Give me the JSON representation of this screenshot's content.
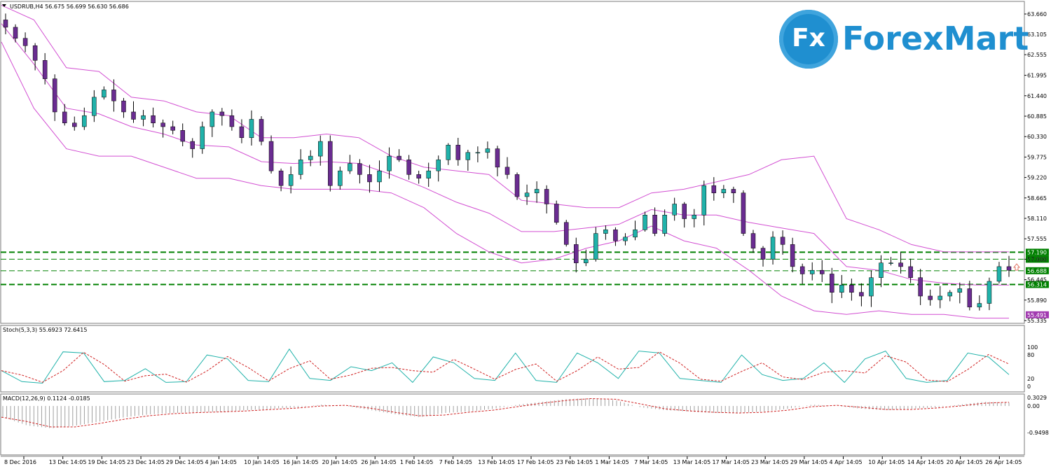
{
  "main_panel": {
    "header": "USDRUB,H4  56.675 56.699 56.630 56.686",
    "price_ticks": [
      "63.660",
      "63.105",
      "62.555",
      "61.995",
      "61.440",
      "60.885",
      "60.330",
      "59.775",
      "59.220",
      "58.665",
      "58.110",
      "57.555",
      "57.000",
      "56.445",
      "55.890",
      "55.335"
    ],
    "levels": [
      {
        "price": 57.19,
        "label": "57.190",
        "bg": "#008000",
        "fg": "#ffffff"
      },
      {
        "price": 57.0,
        "label": "57.000",
        "bg": "#008000",
        "fg": "#ffffff"
      },
      {
        "price": 56.688,
        "label": "56.688",
        "bg": "#008000",
        "fg": "#ffffff"
      },
      {
        "price": 56.314,
        "label": "56.314",
        "bg": "#008000",
        "fg": "#ffffff"
      },
      {
        "price": 55.491,
        "label": "55.491",
        "bg": "#a23ab0",
        "fg": "#ffffff"
      }
    ]
  },
  "stoch_panel": {
    "header": "Stoch(5,3,3) 55.6923 72.6415",
    "ticks": [
      "100",
      "80",
      "20",
      "0"
    ]
  },
  "macd_panel": {
    "header": "MACD(12,26,9) 0.1124 -0.0185",
    "ticks": [
      "0.3029",
      "0.00",
      "-0.9498"
    ]
  },
  "x_labels": [
    "8 Dec 2016",
    "13 Dec 14:05",
    "19 Dec 14:05",
    "23 Dec 14:05",
    "29 Dec 14:05",
    "4 Jan 14:05",
    "10 Jan 14:05",
    "16 Jan 14:05",
    "20 Jan 14:05",
    "26 Jan 14:05",
    "1 Feb 14:05",
    "7 Feb 14:05",
    "13 Feb 14:05",
    "17 Feb 14:05",
    "23 Feb 14:05",
    "1 Mar 14:05",
    "7 Mar 14:05",
    "13 Mar 14:05",
    "17 Mar 14:05",
    "23 Mar 14:05",
    "29 Mar 14:05",
    "4 Apr 14:05",
    "10 Apr 14:05",
    "14 Apr 14:05",
    "20 Apr 14:05",
    "26 Apr 14:05"
  ],
  "logo": {
    "badge_text": "Fx",
    "brand_text": "ForexMart"
  },
  "colors": {
    "bull": "#20b2aa",
    "bear": "#6a2c91",
    "bollinger": "#d24fd2",
    "level_line": "#008000",
    "stoch_main": "#20b2aa",
    "stoch_signal": "#d02020",
    "macd_hist": "#a0a0a0",
    "macd_signal": "#d02020"
  },
  "chart_data": {
    "type": "candlestick",
    "symbol": "USDRUB",
    "timeframe": "H4",
    "ylim": [
      55.335,
      63.66
    ],
    "close_series": [
      63.3,
      63.0,
      62.8,
      62.4,
      61.9,
      61.0,
      60.7,
      60.6,
      60.9,
      61.4,
      61.6,
      61.3,
      61.0,
      60.8,
      60.9,
      60.7,
      60.6,
      60.5,
      60.2,
      60.0,
      60.6,
      61.0,
      60.9,
      60.6,
      60.3,
      60.8,
      60.2,
      59.4,
      59.0,
      59.3,
      59.7,
      59.8,
      60.2,
      59.0,
      59.4,
      59.6,
      59.3,
      59.1,
      59.4,
      59.8,
      59.7,
      59.3,
      59.2,
      59.4,
      59.7,
      60.1,
      59.7,
      59.9,
      59.9,
      60.0,
      59.5,
      59.3,
      58.7,
      58.8,
      58.9,
      58.5,
      58.0,
      57.4,
      56.9,
      57.0,
      57.7,
      57.8,
      57.5,
      57.6,
      57.8,
      58.2,
      57.7,
      58.2,
      58.5,
      58.1,
      58.2,
      59.0,
      58.8,
      58.9,
      58.8,
      57.7,
      57.3,
      57.0,
      57.6,
      57.4,
      56.8,
      56.6,
      56.7,
      56.6,
      56.1,
      56.3,
      56.1,
      56.0,
      56.5,
      56.9,
      56.9,
      56.8,
      56.5,
      56.0,
      55.9,
      56.0,
      56.1,
      56.2,
      55.7,
      55.8,
      56.4,
      56.8,
      56.7
    ],
    "bollinger_upper": [
      63.9,
      63.5,
      62.2,
      62.1,
      61.4,
      61.3,
      61.0,
      60.9,
      60.3,
      60.3,
      60.4,
      60.3,
      59.8,
      59.5,
      59.4,
      59.3,
      58.6,
      58.5,
      58.4,
      58.4,
      58.8,
      58.9,
      59.1,
      59.3,
      59.7,
      59.8,
      58.1,
      57.8,
      57.4,
      57.2,
      57.2,
      57.2
    ],
    "bollinger_lower": [
      62.9,
      61.1,
      60.0,
      59.8,
      59.8,
      59.5,
      59.2,
      59.2,
      59.0,
      58.9,
      58.9,
      58.9,
      58.8,
      58.4,
      57.7,
      57.2,
      56.9,
      57.0,
      57.3,
      57.5,
      57.9,
      57.5,
      57.3,
      56.7,
      56.0,
      55.6,
      55.5,
      55.6,
      55.5,
      55.5,
      55.4,
      55.4
    ],
    "stoch_main": [
      40,
      12,
      8,
      88,
      85,
      12,
      15,
      45,
      10,
      12,
      80,
      70,
      15,
      12,
      95,
      20,
      15,
      50,
      40,
      60,
      10,
      75,
      60,
      20,
      15,
      85,
      15,
      10,
      85,
      60,
      20,
      90,
      85,
      20,
      15,
      10,
      80,
      30,
      15,
      20,
      60,
      10,
      70,
      90,
      20,
      10,
      15,
      85,
      75,
      30
    ],
    "macd_hist": [
      -0.4,
      -0.7,
      -0.8,
      -0.7,
      -0.55,
      -0.4,
      -0.3,
      -0.25,
      -0.22,
      -0.2,
      -0.15,
      -0.1,
      -0.05,
      0.05,
      0.0,
      -0.15,
      -0.3,
      -0.4,
      -0.25,
      -0.2,
      -0.1,
      0.05,
      0.15,
      0.25,
      0.28,
      0.2,
      -0.05,
      -0.15,
      -0.2,
      -0.25,
      -0.25,
      -0.2,
      -0.1,
      0.05,
      0.0,
      -0.1,
      -0.15,
      -0.1,
      -0.05,
      0.05,
      0.15,
      0.12
    ]
  }
}
